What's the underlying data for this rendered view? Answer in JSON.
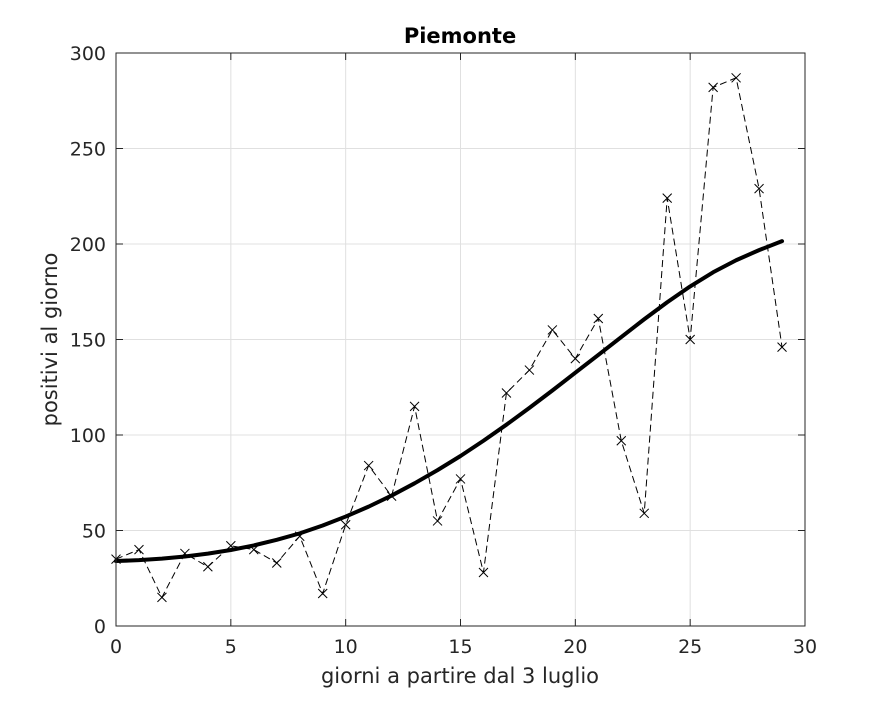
{
  "chart_data": {
    "type": "line",
    "title": "Piemonte",
    "xlabel": "giorni a partire dal 3 luglio",
    "ylabel": "positivi al giorno",
    "xlim": [
      0,
      30
    ],
    "ylim": [
      0,
      300
    ],
    "xticks": [
      0,
      5,
      10,
      15,
      20,
      25,
      30
    ],
    "yticks": [
      0,
      50,
      100,
      150,
      200,
      250,
      300
    ],
    "grid": true,
    "series": [
      {
        "style": "dashed-with-x-markers",
        "color": "#000000",
        "x": [
          0,
          1,
          2,
          3,
          4,
          5,
          6,
          7,
          8,
          9,
          10,
          11,
          12,
          13,
          14,
          15,
          16,
          17,
          18,
          19,
          20,
          21,
          22,
          23,
          24,
          25,
          26,
          27,
          28,
          29
        ],
        "y": [
          35,
          40,
          15,
          38,
          31,
          42,
          40,
          33,
          47,
          17,
          53,
          84,
          68,
          115,
          55,
          77,
          28,
          122,
          134,
          155,
          140,
          161,
          97,
          59,
          224,
          150,
          282,
          287,
          229,
          146
        ]
      },
      {
        "style": "solid-thick",
        "color": "#000000",
        "x": [
          0,
          1,
          2,
          3,
          4,
          5,
          6,
          7,
          8,
          9,
          10,
          11,
          12,
          13,
          14,
          15,
          16,
          17,
          18,
          19,
          20,
          21,
          22,
          23,
          24,
          25,
          26,
          27,
          28,
          29
        ],
        "y": [
          34,
          34.5,
          35.3,
          36.4,
          37.9,
          39.8,
          42.2,
          45.1,
          48.5,
          52.6,
          57.3,
          62.5,
          68.3,
          74.7,
          81.6,
          89,
          97,
          105.4,
          114.2,
          123.3,
          132.6,
          141.9,
          151.3,
          160.6,
          169.5,
          177.8,
          185.2,
          191.5,
          196.8,
          201.5
        ]
      }
    ]
  }
}
